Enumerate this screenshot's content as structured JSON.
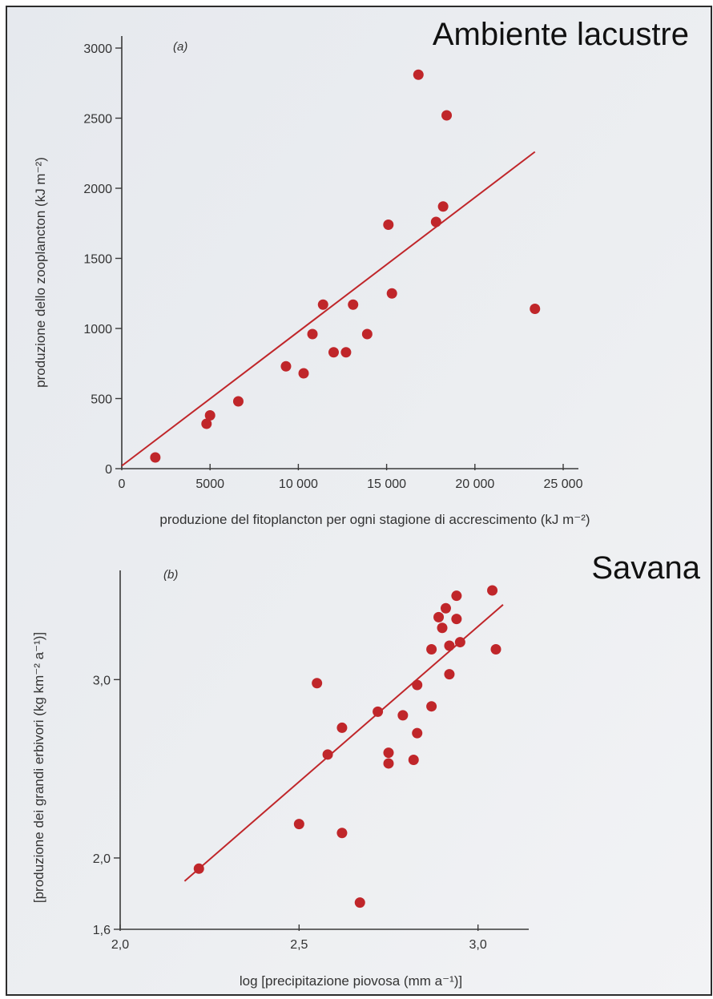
{
  "chart_data": [
    {
      "type": "scatter",
      "panel_label": "(a)",
      "annotation": "Ambiente lacustre",
      "xlabel": "produzione del fitoplancton per ogni stagione di accrescimento (kJ m⁻²)",
      "ylabel": "produzione dello zooplancton (kJ m⁻²)",
      "xlim": [
        0,
        25000
      ],
      "ylim": [
        0,
        3000
      ],
      "xticks": [
        0,
        5000,
        10000,
        15000,
        20000,
        25000
      ],
      "xtick_labels": [
        "0",
        "5000",
        "10 000",
        "15 000",
        "20 000",
        "25 000"
      ],
      "yticks": [
        0,
        500,
        1000,
        1500,
        2000,
        2500,
        3000
      ],
      "ytick_labels": [
        "0",
        "500",
        "1000",
        "1500",
        "2000",
        "2500",
        "3000"
      ],
      "points": [
        {
          "x": 1900,
          "y": 80
        },
        {
          "x": 4800,
          "y": 320
        },
        {
          "x": 5000,
          "y": 380
        },
        {
          "x": 6600,
          "y": 480
        },
        {
          "x": 9300,
          "y": 730
        },
        {
          "x": 10300,
          "y": 680
        },
        {
          "x": 10800,
          "y": 960
        },
        {
          "x": 11400,
          "y": 1170
        },
        {
          "x": 12000,
          "y": 830
        },
        {
          "x": 12700,
          "y": 830
        },
        {
          "x": 13100,
          "y": 1170
        },
        {
          "x": 13900,
          "y": 960
        },
        {
          "x": 15100,
          "y": 1740
        },
        {
          "x": 15300,
          "y": 1250
        },
        {
          "x": 16800,
          "y": 2810
        },
        {
          "x": 17800,
          "y": 1760
        },
        {
          "x": 18200,
          "y": 1870
        },
        {
          "x": 18400,
          "y": 2520
        },
        {
          "x": 23400,
          "y": 1140
        }
      ],
      "trendline": {
        "x": [
          0,
          23400
        ],
        "y": [
          20,
          2260
        ]
      },
      "point_color": "#c0262a",
      "line_color": "#c0262a"
    },
    {
      "type": "scatter",
      "panel_label": "(b)",
      "annotation": "Savana",
      "xlabel": "log [precipitazione piovosa (mm a⁻¹)]",
      "ylabel": "[produzione dei grandi erbivori (kg km⁻² a⁻¹)]",
      "xlim": [
        2.0,
        3.2
      ],
      "ylim": [
        1.6,
        3.5
      ],
      "xticks": [
        2.0,
        2.5,
        3.0
      ],
      "xtick_labels": [
        "2,0",
        "2,5",
        "3,0"
      ],
      "yticks": [
        1.6,
        2.0,
        3.0
      ],
      "ytick_labels": [
        "1,6",
        "2,0",
        "3,0"
      ],
      "points": [
        {
          "x": 2.22,
          "y": 1.94
        },
        {
          "x": 2.5,
          "y": 2.19
        },
        {
          "x": 2.55,
          "y": 2.98
        },
        {
          "x": 2.58,
          "y": 2.58
        },
        {
          "x": 2.62,
          "y": 2.14
        },
        {
          "x": 2.62,
          "y": 2.73
        },
        {
          "x": 2.67,
          "y": 1.75
        },
        {
          "x": 2.72,
          "y": 2.82
        },
        {
          "x": 2.75,
          "y": 2.53
        },
        {
          "x": 2.75,
          "y": 2.59
        },
        {
          "x": 2.79,
          "y": 2.8
        },
        {
          "x": 2.82,
          "y": 2.55
        },
        {
          "x": 2.83,
          "y": 2.7
        },
        {
          "x": 2.83,
          "y": 2.97
        },
        {
          "x": 2.87,
          "y": 2.85
        },
        {
          "x": 2.87,
          "y": 3.17
        },
        {
          "x": 2.89,
          "y": 3.35
        },
        {
          "x": 2.9,
          "y": 3.29
        },
        {
          "x": 2.91,
          "y": 3.4
        },
        {
          "x": 2.92,
          "y": 3.03
        },
        {
          "x": 2.92,
          "y": 3.19
        },
        {
          "x": 2.94,
          "y": 3.34
        },
        {
          "x": 2.94,
          "y": 3.47
        },
        {
          "x": 2.95,
          "y": 3.21
        },
        {
          "x": 3.04,
          "y": 3.5
        },
        {
          "x": 3.05,
          "y": 3.17
        }
      ],
      "trendline": {
        "x": [
          2.18,
          3.07
        ],
        "y": [
          1.87,
          3.42
        ]
      },
      "point_color": "#c0262a",
      "line_color": "#c0262a"
    }
  ]
}
